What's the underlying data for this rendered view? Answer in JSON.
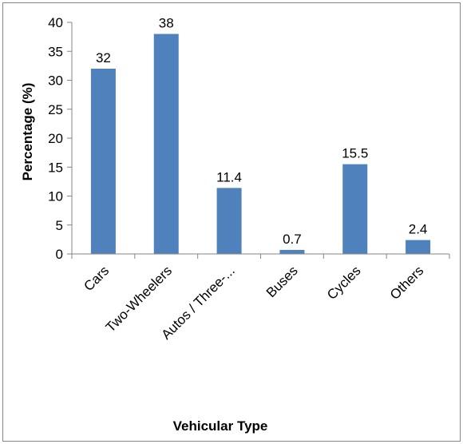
{
  "chart_data": {
    "type": "bar",
    "categories": [
      "Cars",
      "Two-Wheelers",
      "Autos / Three-...",
      "Buses",
      "Cycles",
      "Others"
    ],
    "values": [
      32,
      38,
      11.4,
      0.7,
      15.5,
      2.4
    ],
    "data_labels": [
      "32",
      "38",
      "11.4",
      "0.7",
      "15.5",
      "2.4"
    ],
    "xlabel": "Vehicular Type",
    "ylabel": "Percentage (%)",
    "ylim": [
      0,
      40
    ],
    "yticks": [
      0,
      5,
      10,
      15,
      20,
      25,
      30,
      35,
      40
    ],
    "grid": false,
    "legend": "none",
    "bar_color": "#4F81BD",
    "axis_color": "#868686"
  }
}
